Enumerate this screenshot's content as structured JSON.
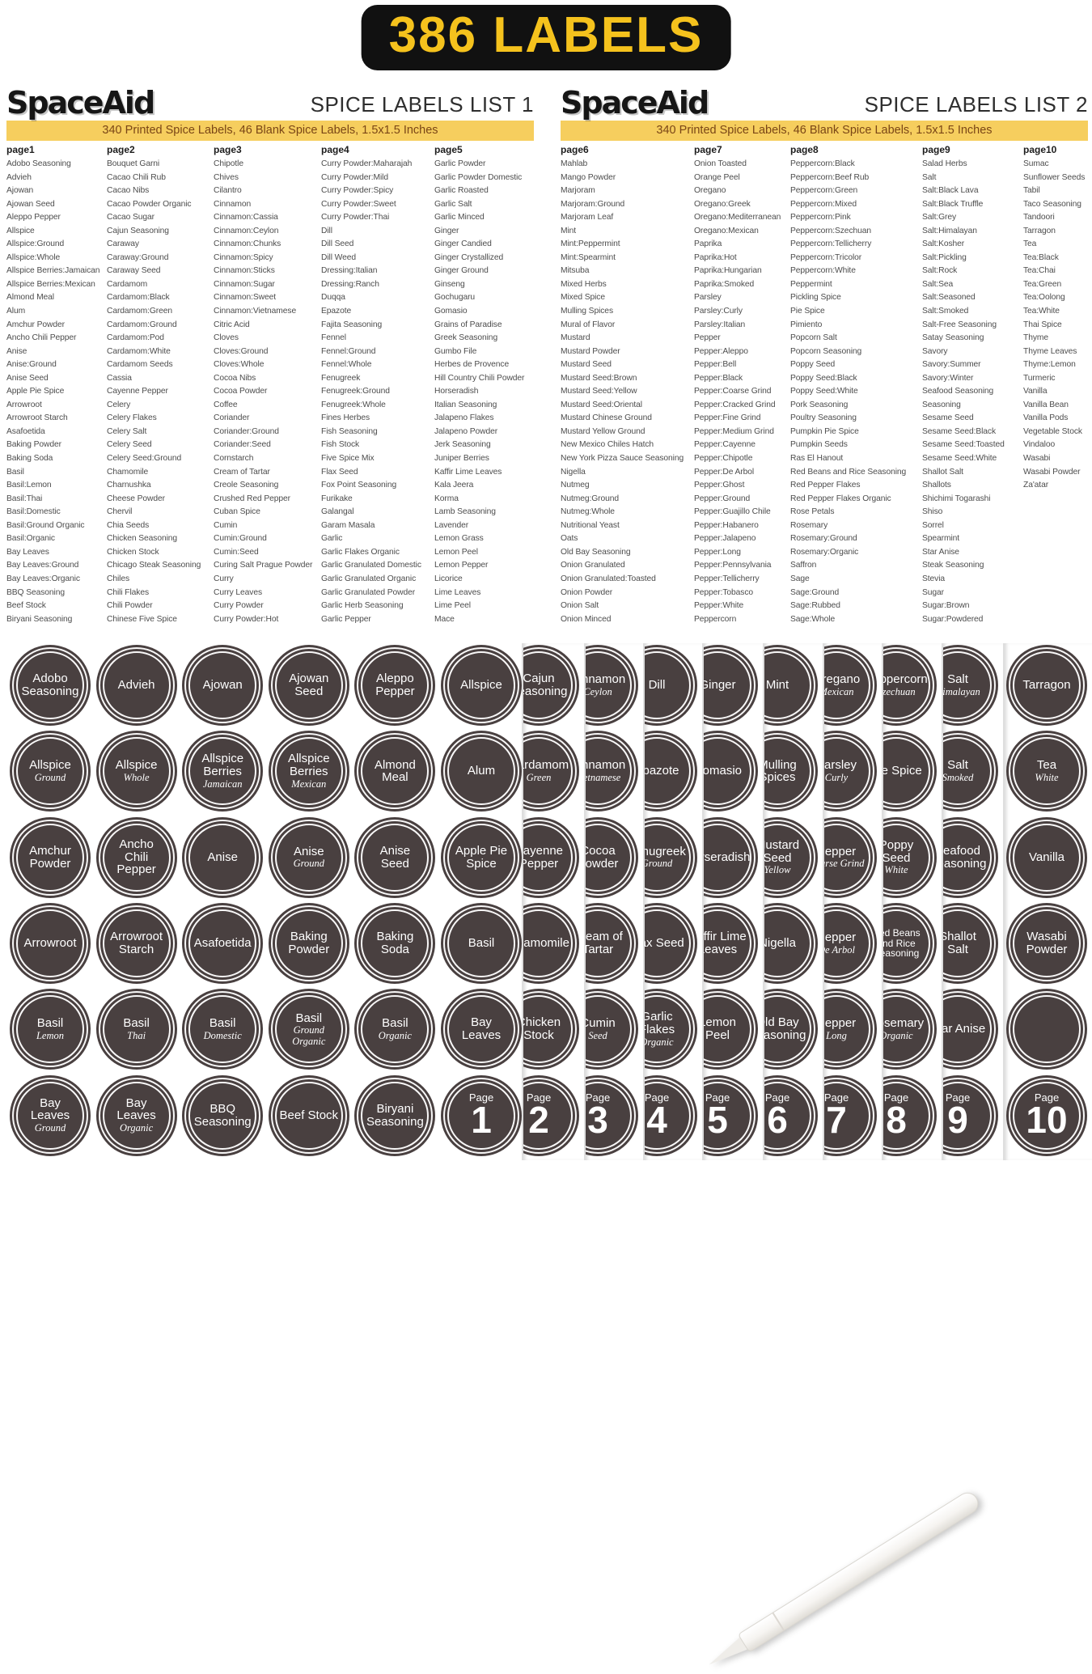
{
  "banner": {
    "text": "386 LABELS"
  },
  "colors": {
    "banner_bg": "#111111",
    "banner_text": "#F5C21D",
    "bar_bg": "#F6CE5E",
    "bar_text": "#7A4616",
    "circle_bg": "#494040",
    "circle_text": "#FFFFFF"
  },
  "lists": [
    {
      "brand": "SpaceAid",
      "title": "SPICE LABELS LIST 1",
      "subtitle": "340 Printed Spice Labels, 46 Blank Spice Labels, 1.5x1.5 Inches",
      "columns": [
        {
          "header": "page1",
          "items": [
            "Adobo Seasoning",
            "Advieh",
            "Ajowan",
            "Ajowan Seed",
            "Aleppo Pepper",
            "Allspice",
            "Allspice:Ground",
            "Allspice:Whole",
            "Allspice Berries:Jamaican",
            "Allspice Berries:Mexican",
            "Almond Meal",
            "Alum",
            "Amchur Powder",
            "Ancho Chili Pepper",
            "Anise",
            "Anise:Ground",
            "Anise Seed",
            "Apple Pie Spice",
            "Arrowroot",
            "Arrowroot Starch",
            "Asafoetida",
            "Baking Powder",
            "Baking Soda",
            "Basil",
            "Basil:Lemon",
            "Basil:Thai",
            "Basil:Domestic",
            "Basil:Ground Organic",
            "Basil:Organic",
            "Bay Leaves",
            "Bay Leaves:Ground",
            "Bay Leaves:Organic",
            "BBQ Seasoning",
            "Beef Stock",
            "Biryani Seasoning"
          ]
        },
        {
          "header": "page2",
          "items": [
            "Bouquet Garni",
            "Cacao Chili Rub",
            "Cacao Nibs",
            "Cacao Powder Organic",
            "Cacao Sugar",
            "Cajun Seasoning",
            "Caraway",
            "Caraway:Ground",
            "Caraway Seed",
            "Cardamom",
            "Cardamom:Black",
            "Cardamom:Green",
            "Cardamom:Ground",
            "Cardamom:Pod",
            "Cardamom:White",
            "Cardamom Seeds",
            "Cassia",
            "Cayenne Pepper",
            "Celery",
            "Celery Flakes",
            "Celery Salt",
            "Celery Seed",
            "Celery Seed:Ground",
            "Chamomile",
            "Charnushka",
            "Cheese Powder",
            "Chervil",
            "Chia Seeds",
            "Chicken Seasoning",
            "Chicken Stock",
            "Chicago Steak Seasoning",
            "Chiles",
            "Chili Flakes",
            "Chili Powder",
            "Chinese Five Spice"
          ]
        },
        {
          "header": "page3",
          "items": [
            "Chipotle",
            "Chives",
            "Cilantro",
            "Cinnamon",
            "Cinnamon:Cassia",
            "Cinnamon:Ceylon",
            "Cinnamon:Chunks",
            "Cinnamon:Spicy",
            "Cinnamon:Sticks",
            "Cinnamon:Sugar",
            "Cinnamon:Sweet",
            "Cinnamon:Vietnamese",
            "Citric Acid",
            "Cloves",
            "Cloves:Ground",
            "Cloves:Whole",
            "Cocoa Nibs",
            "Cocoa Powder",
            "Coffee",
            "Coriander",
            "Coriander:Ground",
            "Coriander:Seed",
            "Cornstarch",
            "Cream of Tartar",
            "Creole Seasoning",
            "Crushed Red Pepper",
            "Cuban Spice",
            "Cumin",
            "Cumin:Ground",
            "Cumin:Seed",
            "Curing Salt Prague Powder",
            "Curry",
            "Curry Leaves",
            "Curry Powder",
            "Curry Powder:Hot"
          ]
        },
        {
          "header": "page4",
          "items": [
            "Curry Powder:Maharajah",
            "Curry Powder:Mild",
            "Curry Powder:Spicy",
            "Curry Powder:Sweet",
            "Curry Powder:Thai",
            "Dill",
            "Dill Seed",
            "Dill Weed",
            "Dressing:Italian",
            "Dressing:Ranch",
            "Duqqa",
            "Epazote",
            "Fajita Seasoning",
            "Fennel",
            "Fennel:Ground",
            "Fennel:Whole",
            "Fenugreek",
            "Fenugreek:Ground",
            "Fenugreek:Whole",
            "Fines Herbes",
            "Fish Seasoning",
            "Fish Stock",
            "Five Spice Mix",
            "Flax Seed",
            "Fox Point Seasoning",
            "Furikake",
            "Galangal",
            "Garam Masala",
            "Garlic",
            "Garlic Flakes Organic",
            "Garlic Granulated Domestic",
            "Garlic Granulated Organic",
            "Garlic Granulated Powder",
            "Garlic Herb Seasoning",
            "Garlic Pepper"
          ]
        },
        {
          "header": "page5",
          "items": [
            "Garlic Powder",
            "Garlic Powder Domestic",
            "Garlic Roasted",
            "Garlic Salt",
            "Garlic Minced",
            "Ginger",
            "Ginger Candied",
            "Ginger Crystallized",
            "Ginger Ground",
            "Ginseng",
            "Gochugaru",
            "Gomasio",
            "Grains of Paradise",
            "Greek Seasoning",
            "Gumbo File",
            "Herbes de Provence",
            "Hill Country Chili Powder",
            "Horseradish",
            "Italian Seasoning",
            "Jalapeno Flakes",
            "Jalapeno Powder",
            "Jerk Seasoning",
            "Juniper Berries",
            "Kaffir Lime Leaves",
            "Kala Jeera",
            "Korma",
            "Lamb Seasoning",
            "Lavender",
            "Lemon Grass",
            "Lemon Peel",
            "Lemon Pepper",
            "Licorice",
            "Lime Leaves",
            "Lime Peel",
            "Mace"
          ]
        }
      ]
    },
    {
      "brand": "SpaceAid",
      "title": "SPICE LABELS LIST 2",
      "subtitle": "340 Printed Spice Labels, 46 Blank Spice Labels, 1.5x1.5 Inches",
      "columns": [
        {
          "header": "page6",
          "items": [
            "Mahlab",
            "Mango Powder",
            "Marjoram",
            "Marjoram:Ground",
            "Marjoram Leaf",
            "Mint",
            "Mint:Peppermint",
            "Mint:Spearmint",
            "Mitsuba",
            "Mixed Herbs",
            "Mixed Spice",
            "Mulling Spices",
            "Mural of Flavor",
            "Mustard",
            "Mustard Powder",
            "Mustard Seed",
            "Mustard Seed:Brown",
            "Mustard Seed:Yellow",
            "Mustard Seed:Oriental",
            "Mustard Chinese Ground",
            "Mustard Yellow Ground",
            "New Mexico Chiles Hatch",
            "New York Pizza Sauce Seasoning",
            "Nigella",
            "Nutmeg",
            "Nutmeg:Ground",
            "Nutmeg:Whole",
            "Nutritional Yeast",
            "Oats",
            "Old Bay Seasoning",
            "Onion Granulated",
            "Onion Granulated:Toasted",
            "Onion Powder",
            "Onion Salt",
            "Onion Minced"
          ]
        },
        {
          "header": "page7",
          "items": [
            "Onion Toasted",
            "Orange Peel",
            "Oregano",
            "Oregano:Greek",
            "Oregano:Mediterranean",
            "Oregano:Mexican",
            "Paprika",
            "Paprika:Hot",
            "Paprika:Hungarian",
            "Paprika:Smoked",
            "Parsley",
            "Parsley:Curly",
            "Parsley:Italian",
            "Pepper",
            "Pepper:Aleppo",
            "Pepper:Bell",
            "Pepper:Black",
            "Pepper:Coarse Grind",
            "Pepper:Cracked Grind",
            "Pepper:Fine Grind",
            "Pepper:Medium Grind",
            "Pepper:Cayenne",
            "Pepper:Chipotle",
            "Pepper:De Arbol",
            "Pepper:Ghost",
            "Pepper:Ground",
            "Pepper:Guajillo Chile",
            "Pepper:Habanero",
            "Pepper:Jalapeno",
            "Pepper:Long",
            "Pepper:Pennsylvania",
            "Pepper:Tellicherry",
            "Pepper:Tobasco",
            "Pepper:White",
            "Peppercorn"
          ]
        },
        {
          "header": "page8",
          "items": [
            "Peppercorn:Black",
            "Peppercorn:Beef Rub",
            "Peppercorn:Green",
            "Peppercorn:Mixed",
            "Peppercorn:Pink",
            "Peppercorn:Szechuan",
            "Peppercorn:Tellicherry",
            "Peppercorn:Tricolor",
            "Peppercorn:White",
            "Peppermint",
            "Pickling Spice",
            "Pie Spice",
            "Pimiento",
            "Popcorn Salt",
            "Popcorn Seasoning",
            "Poppy Seed",
            "Poppy Seed:Black",
            "Poppy Seed:White",
            "Pork Seasoning",
            "Poultry Seasoning",
            "Pumpkin Pie Spice",
            "Pumpkin Seeds",
            "Ras El Hanout",
            "Red Beans and Rice Seasoning",
            "Red Pepper Flakes",
            "Red Pepper Flakes Organic",
            "Rose Petals",
            "Rosemary",
            "Rosemary:Ground",
            "Rosemary:Organic",
            "Saffron",
            "Sage",
            "Sage:Ground",
            "Sage:Rubbed",
            "Sage:Whole"
          ]
        },
        {
          "header": "page9",
          "items": [
            "Salad Herbs",
            "Salt",
            "Salt:Black Lava",
            "Salt:Black Truffle",
            "Salt:Grey",
            "Salt:Himalayan",
            "Salt:Kosher",
            "Salt:Pickling",
            "Salt:Rock",
            "Salt:Sea",
            "Salt:Seasoned",
            "Salt:Smoked",
            "Salt-Free Seasoning",
            "Satay Seasoning",
            "Savory",
            "Savory:Summer",
            "Savory:Winter",
            "Seafood Seasoning",
            "Seasoning",
            "Sesame Seed",
            "Sesame Seed:Black",
            "Sesame Seed:Toasted",
            "Sesame Seed:White",
            "Shallot Salt",
            "Shallots",
            "Shichimi Togarashi",
            "Shiso",
            "Sorrel",
            "Spearmint",
            "Star Anise",
            "Steak Seasoning",
            "Stevia",
            "Sugar",
            "Sugar:Brown",
            "Sugar:Powdered"
          ]
        },
        {
          "header": "page10",
          "items": [
            "Sumac",
            "Sunflower Seeds",
            "Tabil",
            "Taco Seasoning",
            "Tandoori",
            "Tarragon",
            "Tea",
            "Tea:Black",
            "Tea:Chai",
            "Tea:Green",
            "Tea:Oolong",
            "Tea:White",
            "Thai Spice",
            "Thyme",
            "Thyme Leaves",
            "Thyme:Lemon",
            "Turmeric",
            "Vanilla",
            "Vanilla Bean",
            "Vanilla Pods",
            "Vegetable Stock",
            "Vindaloo",
            "Wasabi",
            "Wasabi Powder",
            "Za'atar"
          ]
        }
      ]
    }
  ],
  "sticker_sheet": {
    "page_word": "Page",
    "main_sheet": {
      "cells": [
        {
          "main": "Adobo Seasoning"
        },
        {
          "main": "Advieh"
        },
        {
          "main": "Ajowan"
        },
        {
          "main": "Ajowan Seed"
        },
        {
          "main": "Aleppo Pepper"
        },
        {
          "main": "Allspice"
        },
        {
          "main": "Allspice",
          "sub": "Ground"
        },
        {
          "main": "Allspice",
          "sub": "Whole"
        },
        {
          "main": "Allspice Berries",
          "sub": "Jamaican"
        },
        {
          "main": "Allspice Berries",
          "sub": "Mexican"
        },
        {
          "main": "Almond Meal"
        },
        {
          "main": "Alum"
        },
        {
          "main": "Amchur Powder"
        },
        {
          "main": "Ancho Chili Pepper"
        },
        {
          "main": "Anise"
        },
        {
          "main": "Anise",
          "sub": "Ground"
        },
        {
          "main": "Anise Seed"
        },
        {
          "main": "Apple Pie Spice"
        },
        {
          "main": "Arrowroot"
        },
        {
          "main": "Arrowroot Starch"
        },
        {
          "main": "Asafoetida"
        },
        {
          "main": "Baking Powder"
        },
        {
          "main": "Baking Soda"
        },
        {
          "main": "Basil"
        },
        {
          "main": "Basil",
          "sub": "Lemon"
        },
        {
          "main": "Basil",
          "sub": "Thai"
        },
        {
          "main": "Basil",
          "sub": "Domestic"
        },
        {
          "main": "Basil",
          "sub": "Ground Organic"
        },
        {
          "main": "Basil",
          "sub": "Organic"
        },
        {
          "main": "Bay Leaves"
        },
        {
          "main": "Bay Leaves",
          "sub": "Ground"
        },
        {
          "main": "Bay Leaves",
          "sub": "Organic"
        },
        {
          "main": "BBQ Seasoning"
        },
        {
          "main": "Beef Stock"
        },
        {
          "main": "Biryani Seasoning"
        },
        {
          "page": "1"
        }
      ]
    },
    "strips": [
      {
        "circles": [
          {
            "main": "Cajun Seasoning"
          },
          {
            "main": "Cardamom",
            "sub": "Green"
          },
          {
            "main": "Cayenne Pepper"
          },
          {
            "main": "Chamomile"
          },
          {
            "main": "Chicken Stock"
          },
          {
            "page": "2"
          }
        ]
      },
      {
        "circles": [
          {
            "main": "Cinnamon",
            "sub": "Ceylon"
          },
          {
            "main": "Cinnamon",
            "sub": "Vietnamese"
          },
          {
            "main": "Cocoa Powder"
          },
          {
            "main": "Cream of Tartar"
          },
          {
            "main": "Cumin",
            "sub": "Seed"
          },
          {
            "page": "3"
          }
        ]
      },
      {
        "circles": [
          {
            "main": "Dill"
          },
          {
            "main": "Epazote"
          },
          {
            "main": "Fenugreek",
            "sub": "Ground"
          },
          {
            "main": "Flax Seed"
          },
          {
            "main": "Garlic Flakes",
            "sub": "Organic"
          },
          {
            "page": "4"
          }
        ]
      },
      {
        "circles": [
          {
            "main": "Ginger"
          },
          {
            "main": "Gomasio"
          },
          {
            "main": "Horseradish"
          },
          {
            "main": "Kaffir Lime Leaves"
          },
          {
            "main": "Lemon Peel"
          },
          {
            "page": "5"
          }
        ]
      },
      {
        "circles": [
          {
            "main": "Mint"
          },
          {
            "main": "Mulling Spices"
          },
          {
            "main": "Mustard Seed",
            "sub": "Yellow"
          },
          {
            "main": "Nigella"
          },
          {
            "main": "Old Bay Seasoning"
          },
          {
            "page": "6"
          }
        ]
      },
      {
        "circles": [
          {
            "main": "Oregano",
            "sub": "Mexican"
          },
          {
            "main": "Parsley",
            "sub": "Curly"
          },
          {
            "main": "Pepper",
            "sub": "Coarse Grind"
          },
          {
            "main": "Pepper",
            "sub": "De Arbol"
          },
          {
            "main": "Pepper",
            "sub": "Long"
          },
          {
            "page": "7"
          }
        ]
      },
      {
        "circles": [
          {
            "main": "Peppercorn",
            "sub": "Szechuan"
          },
          {
            "main": "Pie Spice"
          },
          {
            "main": "Poppy Seed",
            "sub": "White"
          },
          {
            "main": "Red Beans and Rice Seasoning"
          },
          {
            "main": "Rosemary",
            "sub": "Organic"
          },
          {
            "page": "8"
          }
        ]
      },
      {
        "circles": [
          {
            "main": "Salt",
            "sub": "Himalayan"
          },
          {
            "main": "Salt",
            "sub": "Smoked"
          },
          {
            "main": "Seafood Seasoning"
          },
          {
            "main": "Shallot Salt"
          },
          {
            "main": "Star Anise"
          },
          {
            "page": "9"
          }
        ]
      },
      {
        "circles": [
          {
            "main": "Tarragon"
          },
          {
            "main": "Tea",
            "sub": "White"
          },
          {
            "main": "Vanilla"
          },
          {
            "main": "Wasabi Powder"
          },
          {
            "blank": true
          },
          {
            "page": "10"
          }
        ]
      }
    ]
  }
}
